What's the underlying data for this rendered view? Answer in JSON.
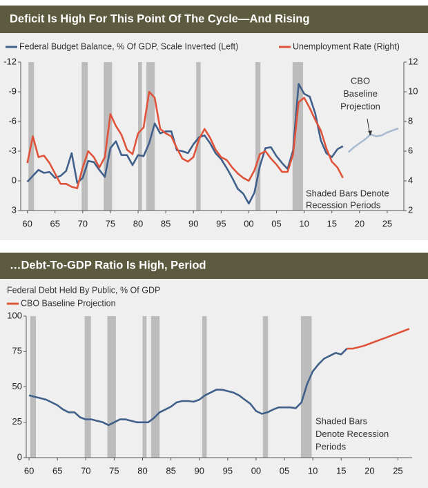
{
  "chart_data": [
    {
      "type": "line",
      "title": "Deficit Is High For This Point Of The Cycle—And Rising",
      "xlim": [
        1958.8,
        2028
      ],
      "xticks": [
        {
          "value": 1960,
          "label": "60"
        },
        {
          "value": 1965,
          "label": "65"
        },
        {
          "value": 1970,
          "label": "70"
        },
        {
          "value": 1975,
          "label": "75"
        },
        {
          "value": 1980,
          "label": "80"
        },
        {
          "value": 1985,
          "label": "85"
        },
        {
          "value": 1990,
          "label": "90"
        },
        {
          "value": 1995,
          "label": "95"
        },
        {
          "value": 2000,
          "label": "00"
        },
        {
          "value": 2005,
          "label": "05"
        },
        {
          "value": 2010,
          "label": "10"
        },
        {
          "value": 2015,
          "label": "15"
        },
        {
          "value": 2020,
          "label": "20"
        },
        {
          "value": 2025,
          "label": "25"
        }
      ],
      "ylim": [
        -12,
        3
      ],
      "y_inverted": true,
      "yticks": [
        -12,
        -9,
        -6,
        -3,
        0,
        3
      ],
      "y2lim": [
        2,
        12
      ],
      "y2ticks": [
        2,
        4,
        6,
        8,
        10,
        12
      ],
      "recessions": [
        [
          1960.2,
          1961.2
        ],
        [
          1969.8,
          1970.9
        ],
        [
          1973.8,
          1975.3
        ],
        [
          1980.0,
          1980.7
        ],
        [
          1981.5,
          1983.0
        ],
        [
          1990.5,
          1991.3
        ],
        [
          2001.2,
          2002.1
        ],
        [
          2007.9,
          2009.8
        ]
      ],
      "series": [
        {
          "name": "Federal Budget Balance, % Of GDP, Scale Inverted (Left)",
          "color": "#40608a",
          "axis": "y",
          "x": [
            1960,
            1961,
            1962,
            1963,
            1964,
            1965,
            1966,
            1967,
            1968,
            1969,
            1970,
            1971,
            1972,
            1973,
            1974,
            1975,
            1976,
            1977,
            1978,
            1979,
            1980,
            1981,
            1982,
            1983,
            1984,
            1985,
            1986,
            1987,
            1988,
            1989,
            1990,
            1991,
            1992,
            1993,
            1994,
            1995,
            1996,
            1997,
            1998,
            1999,
            2000,
            2001,
            2002,
            2003,
            2004,
            2005,
            2006,
            2007,
            2008,
            2009,
            2010,
            2011,
            2012,
            2013,
            2014,
            2015,
            2016,
            2017
          ],
          "values": [
            0.1,
            -0.5,
            -1.1,
            -0.8,
            -0.9,
            -0.3,
            -0.5,
            -1.0,
            -2.8,
            0.2,
            -0.3,
            -2.0,
            -1.9,
            -1.1,
            -0.4,
            -3.3,
            -4.0,
            -2.6,
            -2.6,
            -1.6,
            -2.6,
            -2.5,
            -3.8,
            -5.8,
            -4.8,
            -5.0,
            -5.0,
            -3.1,
            -3.0,
            -2.8,
            -3.7,
            -4.4,
            -4.6,
            -3.8,
            -2.8,
            -2.2,
            -1.3,
            -0.3,
            0.8,
            1.3,
            2.3,
            1.2,
            -1.5,
            -3.3,
            -3.4,
            -2.5,
            -1.8,
            -1.2,
            -3.1,
            -9.8,
            -8.8,
            -8.5,
            -6.8,
            -4.1,
            -2.8,
            -2.4,
            -3.2,
            -3.5
          ]
        },
        {
          "color": "#a9bbd0",
          "axis": "y",
          "x": [
            2018,
            2019,
            2020,
            2021,
            2022,
            2023,
            2024,
            2025,
            2026,
            2027
          ],
          "values": [
            -2.9,
            -3.4,
            -3.8,
            -4.2,
            -4.7,
            -4.5,
            -4.6,
            -4.9,
            -5.1,
            -5.3
          ]
        },
        {
          "name": "Unemployment Rate (Right)",
          "color": "#e0533b",
          "axis": "y2",
          "x": [
            1960,
            1961,
            1962,
            1963,
            1964,
            1965,
            1966,
            1967,
            1968,
            1969,
            1970,
            1971,
            1972,
            1973,
            1974,
            1975,
            1976,
            1977,
            1978,
            1979,
            1980,
            1981,
            1982,
            1983,
            1984,
            1985,
            1986,
            1987,
            1988,
            1989,
            1990,
            1991,
            1992,
            1993,
            1994,
            1995,
            1996,
            1997,
            1998,
            1999,
            2000,
            2001,
            2002,
            2003,
            2004,
            2005,
            2006,
            2007,
            2008,
            2009,
            2010,
            2011,
            2012,
            2013,
            2014,
            2015,
            2016,
            2017
          ],
          "values": [
            5.2,
            7.0,
            5.6,
            5.7,
            5.2,
            4.5,
            3.8,
            3.8,
            3.6,
            3.5,
            4.9,
            6.0,
            5.6,
            4.9,
            5.6,
            8.5,
            7.7,
            7.1,
            6.1,
            5.8,
            7.2,
            7.6,
            10.0,
            9.6,
            7.5,
            7.2,
            7.0,
            6.2,
            5.5,
            5.3,
            5.6,
            6.8,
            7.5,
            6.9,
            6.1,
            5.6,
            5.4,
            4.9,
            4.5,
            4.2,
            4.0,
            4.7,
            5.8,
            6.0,
            5.5,
            5.1,
            4.6,
            4.6,
            5.8,
            9.3,
            9.6,
            8.9,
            8.1,
            7.4,
            6.2,
            5.3,
            4.9,
            4.2
          ]
        }
      ],
      "annotations": [
        {
          "lines": [
            "CBO",
            "Baseline",
            "Projection"
          ]
        },
        {
          "lines": [
            "Shaded Bars Denote",
            "Recession Periods"
          ]
        }
      ]
    },
    {
      "type": "line",
      "title": "…Debt-To-GDP Ratio Is High, Period",
      "ylabel": "Federal Debt Held By Public, % Of GDP",
      "xlim": [
        1959.5,
        2027.5
      ],
      "xticks": [
        {
          "value": 1960,
          "label": "60"
        },
        {
          "value": 1965,
          "label": "65"
        },
        {
          "value": 1970,
          "label": "70"
        },
        {
          "value": 1975,
          "label": "75"
        },
        {
          "value": 1980,
          "label": "80"
        },
        {
          "value": 1985,
          "label": "85"
        },
        {
          "value": 1990,
          "label": "90"
        },
        {
          "value": 1995,
          "label": "95"
        },
        {
          "value": 2000,
          "label": "00"
        },
        {
          "value": 2005,
          "label": "05"
        },
        {
          "value": 2010,
          "label": "10"
        },
        {
          "value": 2015,
          "label": "15"
        },
        {
          "value": 2020,
          "label": "20"
        },
        {
          "value": 2025,
          "label": "25"
        }
      ],
      "ylim": [
        0,
        100
      ],
      "yticks": [
        0,
        25,
        50,
        75,
        100
      ],
      "recessions": [
        [
          1960.2,
          1961.2
        ],
        [
          1969.8,
          1970.9
        ],
        [
          1973.8,
          1975.3
        ],
        [
          1980.0,
          1980.7
        ],
        [
          1981.5,
          1983.0
        ],
        [
          1990.5,
          1991.3
        ],
        [
          2001.2,
          2002.1
        ],
        [
          2007.9,
          2009.8
        ]
      ],
      "series": [
        {
          "color": "#40608a",
          "axis": "y",
          "x": [
            1960,
            1961,
            1962,
            1963,
            1964,
            1965,
            1966,
            1967,
            1968,
            1969,
            1970,
            1971,
            1972,
            1973,
            1974,
            1975,
            1976,
            1977,
            1978,
            1979,
            1980,
            1981,
            1982,
            1983,
            1984,
            1985,
            1986,
            1987,
            1988,
            1989,
            1990,
            1991,
            1992,
            1993,
            1994,
            1995,
            1996,
            1997,
            1998,
            1999,
            2000,
            2001,
            2002,
            2003,
            2004,
            2005,
            2006,
            2007,
            2008,
            2009,
            2010,
            2011,
            2012,
            2013,
            2014,
            2015,
            2016
          ],
          "values": [
            44,
            43,
            42,
            41,
            39,
            37,
            34,
            32,
            32,
            28.5,
            27,
            27,
            26,
            25,
            23,
            25,
            27,
            27,
            26,
            25,
            25,
            25,
            28,
            32,
            34,
            36,
            39,
            40,
            40,
            39.5,
            41,
            44,
            46,
            48,
            48,
            47,
            46,
            44,
            41,
            38,
            33,
            31,
            32,
            34,
            35.5,
            35.5,
            35.5,
            35,
            39,
            52,
            61,
            66,
            70,
            72,
            74,
            73,
            77
          ]
        },
        {
          "name": "CBO Baseline Projection",
          "color": "#e0533b",
          "axis": "y",
          "x": [
            2016,
            2017,
            2018,
            2019,
            2020,
            2021,
            2022,
            2023,
            2024,
            2025,
            2026,
            2027
          ],
          "values": [
            77,
            77,
            78,
            79,
            80.5,
            82,
            83.5,
            85,
            86.5,
            88,
            89.5,
            91
          ]
        }
      ],
      "annotations": [
        {
          "lines": [
            "Shaded Bars",
            "Denote Recession",
            "Periods"
          ]
        }
      ]
    }
  ]
}
